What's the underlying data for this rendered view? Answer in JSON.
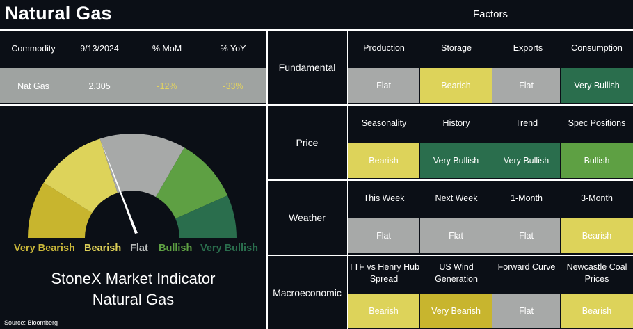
{
  "title": "Natural Gas",
  "factors_title": "Factors",
  "commodity_table": {
    "headers": [
      "Commodity",
      "9/13/2024",
      "% MoM",
      "% YoY"
    ],
    "row": [
      "Nat Gas",
      "2.305",
      "-12%",
      "-33%"
    ]
  },
  "gauge": {
    "labels": [
      "Very Bearish",
      "Bearish",
      "Flat",
      "Bullish",
      "Very Bullish"
    ],
    "colors": {
      "very_bearish": "#c8b52e",
      "bearish": "#ddd35a",
      "flat": "#a7a9a8",
      "bullish": "#5ea043",
      "very_bullish": "#2a6e4d",
      "neutral_label": "#b9bcbb",
      "needle": "#ffffff"
    }
  },
  "indicator_title": [
    "StoneX Market Indicator",
    "Natural Gas"
  ],
  "source": "Source: Bloomberg",
  "sections": [
    {
      "name": "Fundamental",
      "headers": [
        "Production",
        "Storage",
        "Exports",
        "Consumption"
      ],
      "values": [
        "Flat",
        "Bearish",
        "Flat",
        "Very Bullish"
      ]
    },
    {
      "name": "Price",
      "headers": [
        "Seasonality",
        "History",
        "Trend",
        "Spec Positions"
      ],
      "values": [
        "Bearish",
        "Very Bullish",
        "Very Bullish",
        "Bullish"
      ]
    },
    {
      "name": "Weather",
      "headers": [
        "This Week",
        "Next Week",
        "1-Month",
        "3-Month"
      ],
      "values": [
        "Flat",
        "Flat",
        "Flat",
        "Bearish"
      ]
    },
    {
      "name": "Macroeconomic",
      "headers": [
        "TTF vs Henry Hub Spread",
        "US Wind Generation",
        "Forward Curve",
        "Newcastle Coal Prices"
      ],
      "values": [
        "Bearish",
        "Very Bearish",
        "Flat",
        "Bearish"
      ]
    }
  ]
}
